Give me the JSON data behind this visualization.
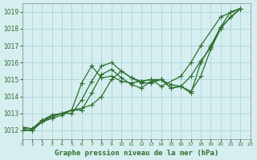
{
  "title": "Graphe pression niveau de la mer (hPa)",
  "background_color": "#d6eef0",
  "grid_color": "#b0d8dc",
  "line_color": "#2d6e2d",
  "xlim": [
    0,
    23
  ],
  "ylim": [
    1011.5,
    1019.5
  ],
  "yticks": [
    1012,
    1013,
    1014,
    1015,
    1016,
    1017,
    1018,
    1019
  ],
  "xticks": [
    0,
    1,
    2,
    3,
    4,
    5,
    6,
    7,
    8,
    9,
    10,
    11,
    12,
    13,
    14,
    15,
    16,
    17,
    18,
    19,
    20,
    21,
    22,
    23
  ],
  "series": [
    [
      1012.0,
      1012.0,
      1012.5,
      1012.8,
      1013.0,
      1013.0,
      1013.8,
      1014.9,
      1015.8,
      1016.0,
      1015.5,
      1015.1,
      1014.8,
      1014.8,
      1015.0,
      1014.7,
      1014.6,
      1014.3,
      1015.2,
      1016.8,
      1018.0,
      1018.7,
      1019.2
    ],
    [
      1012.0,
      1012.0,
      1012.5,
      1012.7,
      1012.9,
      1013.2,
      1013.2,
      1014.2,
      1015.3,
      1015.6,
      1015.1,
      1014.7,
      1014.5,
      1014.9,
      1015.0,
      1014.5,
      1014.6,
      1014.2,
      1016.0,
      1017.0,
      1018.1,
      1019.0,
      1019.2
    ],
    [
      1012.2,
      1012.1,
      1012.6,
      1012.9,
      1013.0,
      1013.2,
      1014.8,
      1015.8,
      1015.1,
      1015.2,
      1014.9,
      1014.8,
      1014.9,
      1015.0,
      1014.6,
      1015.2,
      1016.0,
      1017.0,
      1018.7,
      1019.2
    ],
    [
      1012.1,
      1012.1,
      1012.5,
      1012.9,
      1013.0,
      1013.2,
      1013.3,
      1013.5,
      1014.0,
      1015.0,
      1015.5,
      1015.1,
      1014.9,
      1015.0,
      1015.0,
      1014.5,
      1014.6,
      1015.2,
      1016.1,
      1016.9,
      1018.1,
      1019.2
    ]
  ],
  "series_x": [
    [
      0,
      1,
      2,
      3,
      4,
      5,
      6,
      7,
      8,
      9,
      10,
      11,
      12,
      13,
      14,
      15,
      16,
      17,
      18,
      19,
      20,
      21,
      22
    ],
    [
      0,
      1,
      2,
      3,
      4,
      5,
      6,
      7,
      8,
      9,
      10,
      11,
      12,
      13,
      14,
      15,
      16,
      17,
      18,
      19,
      20,
      21,
      22
    ],
    [
      0,
      1,
      2,
      3,
      4,
      5,
      6,
      7,
      8,
      9,
      10,
      11,
      12,
      13,
      14,
      16,
      17,
      18,
      20,
      22
    ],
    [
      0,
      1,
      2,
      3,
      4,
      5,
      6,
      7,
      8,
      9,
      10,
      11,
      12,
      13,
      14,
      15,
      16,
      17,
      18,
      19,
      20,
      22
    ]
  ]
}
